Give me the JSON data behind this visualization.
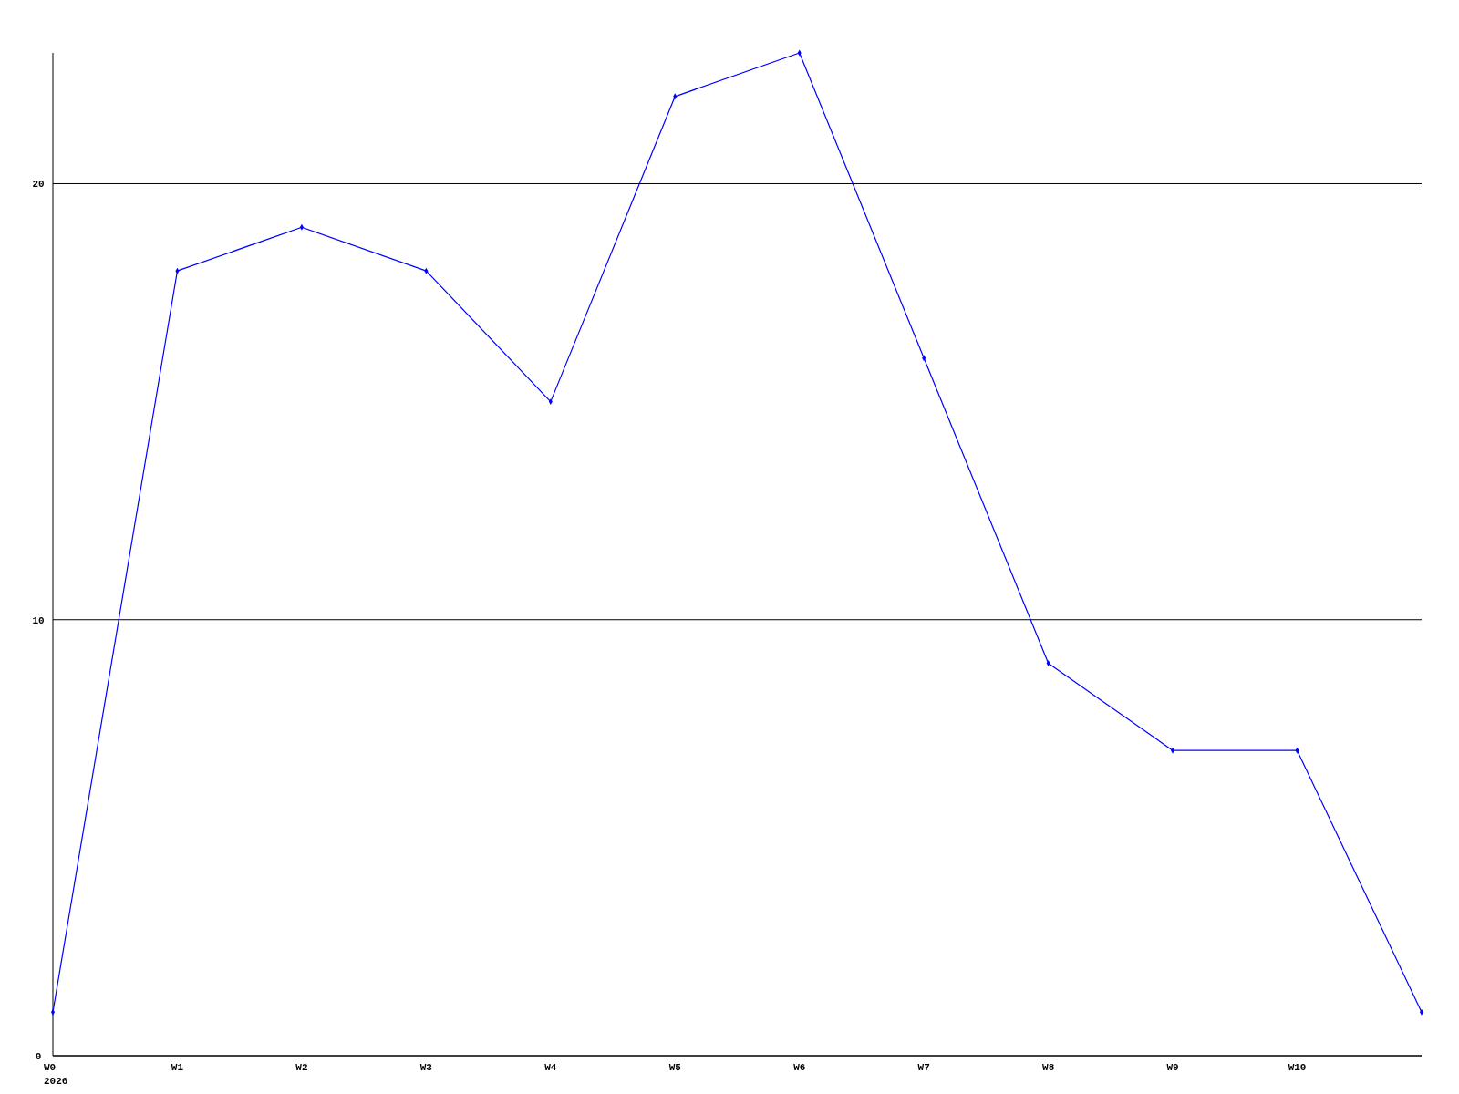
{
  "chart_data": {
    "type": "line",
    "categories": [
      "W0\n2026",
      "W1",
      "W2",
      "W3",
      "W4",
      "W5",
      "W6",
      "W7",
      "W8",
      "W9",
      "W10",
      null
    ],
    "series": [
      {
        "color": "#0000ff",
        "values": [
          1,
          18,
          19,
          18,
          15,
          22,
          23,
          16,
          9,
          7,
          7,
          1
        ]
      }
    ],
    "ylim": [
      0,
      23
    ],
    "yticks": [
      0,
      10,
      20
    ],
    "grid": "y",
    "marker": "diamond",
    "line_style": "solid"
  }
}
